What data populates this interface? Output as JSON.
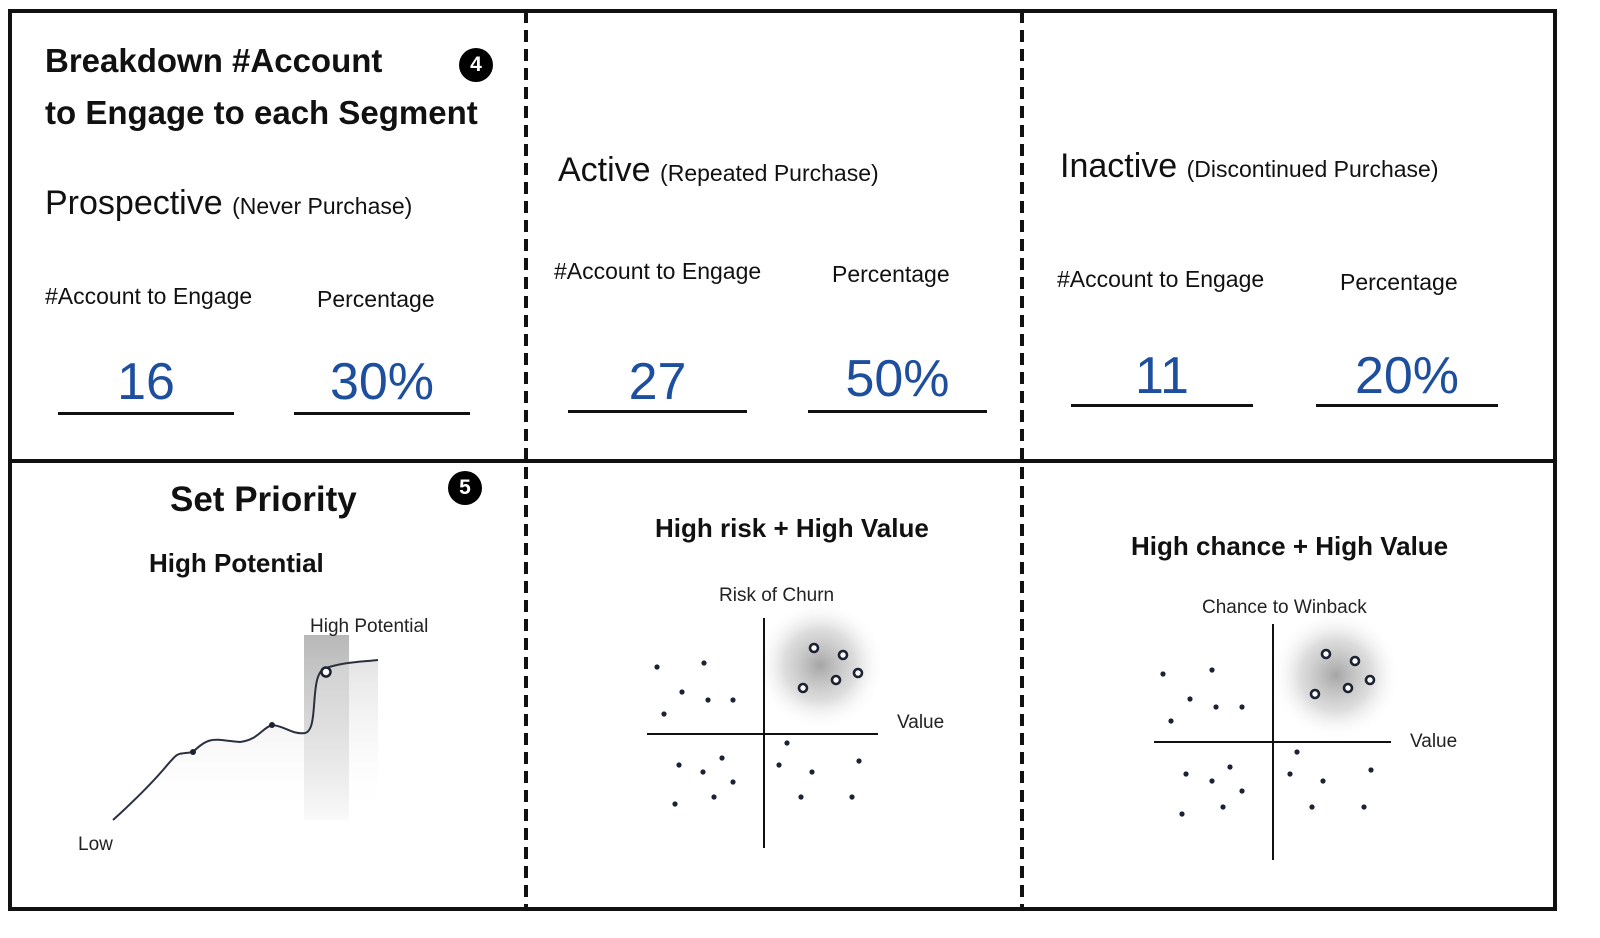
{
  "breakdown": {
    "title_line1": "Breakdown #Account",
    "title_line2": "to Engage to each Segment",
    "badge": "4"
  },
  "segments": [
    {
      "name": "Prospective",
      "qualifier": "(Never Purchase)",
      "accounts_label": "#Account to Engage",
      "percentage_label": "Percentage",
      "accounts": "16",
      "percentage": "30%"
    },
    {
      "name": "Active",
      "qualifier": "(Repeated Purchase)",
      "accounts_label": "#Account to Engage",
      "percentage_label": "Percentage",
      "accounts": "27",
      "percentage": "50%"
    },
    {
      "name": "Inactive",
      "qualifier": "(Discontinued Purchase)",
      "accounts_label": "#Account to Engage",
      "percentage_label": "Percentage",
      "accounts": "11",
      "percentage": "20%"
    }
  ],
  "priority": {
    "title": "Set Priority",
    "badge": "5",
    "panels": [
      {
        "heading": "High Potential",
        "curve_peak_label": "High Potential",
        "curve_low_label": "Low"
      },
      {
        "heading": "High risk + High Value",
        "y_axis_label": "Risk of Churn",
        "x_axis_label": "Value"
      },
      {
        "heading": "High chance + High Value",
        "y_axis_label": "Chance to Winback",
        "x_axis_label": "Value"
      }
    ]
  },
  "colors": {
    "metric_blue": "#1e4f9e",
    "border": "#111111",
    "dot": "#1c2233",
    "highlight": "#9a9a9a"
  }
}
